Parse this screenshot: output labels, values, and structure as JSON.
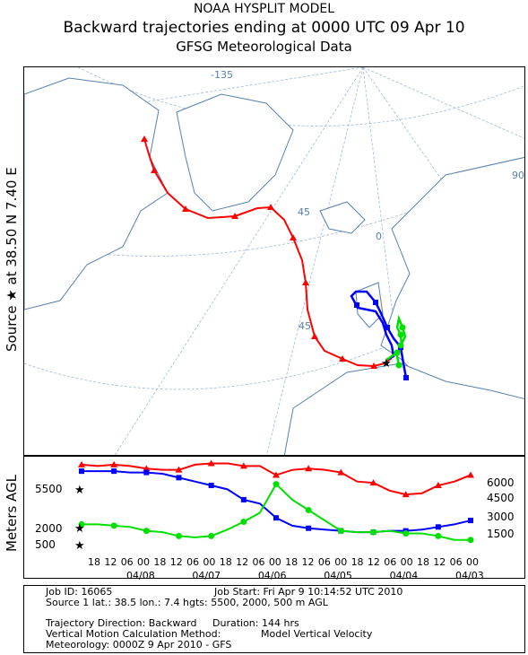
{
  "header": {
    "title_line1": "NOAA HYSPLIT MODEL",
    "title_line2": "Backward trajectories ending at 0000 UTC 09 Apr 10",
    "title_line3": "GFSG Meteorological Data"
  },
  "side_labels": {
    "source": "Source ★ at   38.50 N    7.40 E",
    "agl": "Meters AGL"
  },
  "map": {
    "grid_labels": [
      "-135",
      "90",
      "45",
      "0",
      "45"
    ]
  },
  "colors": {
    "red": "#ff0000",
    "blue": "#0000ff",
    "green": "#00e000",
    "geo": "#5580b0"
  },
  "chart_data": {
    "type": "line",
    "x_ticks": [
      "18",
      "12",
      "06",
      "00",
      "18",
      "12",
      "06",
      "00",
      "18",
      "12",
      "06",
      "00",
      "18",
      "12",
      "06",
      "00",
      "18",
      "12",
      "06",
      "00",
      "18",
      "12",
      "06",
      "00"
    ],
    "date_labels": [
      "04/08",
      "04/07",
      "04/06",
      "04/05",
      "04/04",
      "04/03"
    ],
    "ylabel": "Meters AGL",
    "left_axis_labels": [
      "5500",
      "2000",
      "500"
    ],
    "right_axis_labels": [
      "6000",
      "4500",
      "3000",
      "1500"
    ],
    "x_hours_before_end": [
      144,
      138,
      132,
      126,
      120,
      114,
      108,
      102,
      96,
      90,
      84,
      78,
      72,
      66,
      60,
      54,
      48,
      42,
      36,
      30,
      24,
      18,
      12,
      6,
      0
    ],
    "series": [
      {
        "color": "red",
        "start_height": 5500,
        "values": [
          6300,
          6200,
          6300,
          6200,
          6000,
          5900,
          5900,
          6300,
          6400,
          6400,
          6200,
          6200,
          5500,
          5900,
          6000,
          5900,
          5700,
          5000,
          4900,
          4300,
          4000,
          4100,
          4700,
          5000,
          5500
        ]
      },
      {
        "color": "blue",
        "start_height": 2000,
        "values": [
          5800,
          5800,
          5800,
          5700,
          5700,
          5600,
          5300,
          5000,
          4700,
          4400,
          3600,
          3300,
          2200,
          1600,
          1400,
          1300,
          1200,
          1100,
          1100,
          1200,
          1200,
          1300,
          1500,
          1700,
          2000
        ]
      },
      {
        "color": "green",
        "start_height": 500,
        "values": [
          1700,
          1700,
          1600,
          1500,
          1200,
          1100,
          800,
          700,
          800,
          1300,
          1900,
          2600,
          4800,
          3600,
          2800,
          2000,
          1200,
          1100,
          1100,
          1200,
          1000,
          1000,
          800,
          500,
          500
        ]
      }
    ]
  },
  "info": {
    "job_id": "Job ID: 16065",
    "job_start": "Job Start: Fri Apr  9 10:14:52 UTC 2010",
    "source_line": "Source 1 lat.: 38.5  lon.: 7.4  hgts: 5500, 2000, 500 m AGL",
    "direction": "Trajectory Direction: Backward",
    "duration": "Duration: 144 hrs",
    "vertical_method": "Vertical Motion Calculation Method:",
    "vertical_value": "Model Vertical Velocity",
    "meteorology": "Meteorology: 0000Z  9 Apr 2010 - GFS"
  }
}
